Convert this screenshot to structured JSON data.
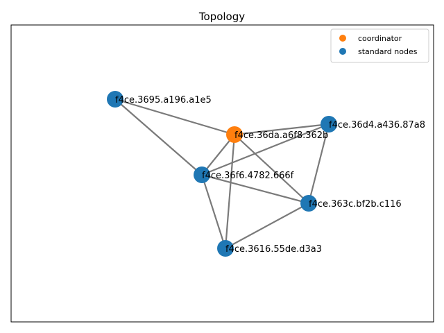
{
  "chart_data": {
    "type": "network",
    "title": "Topology",
    "colors": {
      "coordinator": "#ff7f0e",
      "standard": "#1f77b4",
      "edge": "#7a7a7a"
    },
    "legend": {
      "placement": "top-right",
      "entries": [
        {
          "label": "coordinator",
          "color": "#ff7f0e"
        },
        {
          "label": "standard nodes",
          "color": "#1f77b4"
        }
      ]
    },
    "nodes": [
      {
        "id": "f4ce.3695.a196.a1e5",
        "role": "standard"
      },
      {
        "id": "f4ce.36da.a6f8.362b",
        "role": "coordinator"
      },
      {
        "id": "f4ce.36d4.a436.87a8",
        "role": "standard"
      },
      {
        "id": "f4ce.36f6.4782.666f",
        "role": "standard"
      },
      {
        "id": "f4ce.363c.bf2b.c116",
        "role": "standard"
      },
      {
        "id": "f4ce.3616.55de.d3a3",
        "role": "standard"
      }
    ],
    "edges": [
      [
        "f4ce.3695.a196.a1e5",
        "f4ce.36da.a6f8.362b"
      ],
      [
        "f4ce.3695.a196.a1e5",
        "f4ce.36f6.4782.666f"
      ],
      [
        "f4ce.36da.a6f8.362b",
        "f4ce.36d4.a436.87a8"
      ],
      [
        "f4ce.36da.a6f8.362b",
        "f4ce.36f6.4782.666f"
      ],
      [
        "f4ce.36da.a6f8.362b",
        "f4ce.363c.bf2b.c116"
      ],
      [
        "f4ce.36da.a6f8.362b",
        "f4ce.3616.55de.d3a3"
      ],
      [
        "f4ce.36d4.a436.87a8",
        "f4ce.36f6.4782.666f"
      ],
      [
        "f4ce.36d4.a436.87a8",
        "f4ce.363c.bf2b.c116"
      ],
      [
        "f4ce.36f6.4782.666f",
        "f4ce.363c.bf2b.c116"
      ],
      [
        "f4ce.36f6.4782.666f",
        "f4ce.3616.55de.d3a3"
      ],
      [
        "f4ce.363c.bf2b.c116",
        "f4ce.3616.55de.d3a3"
      ]
    ]
  }
}
